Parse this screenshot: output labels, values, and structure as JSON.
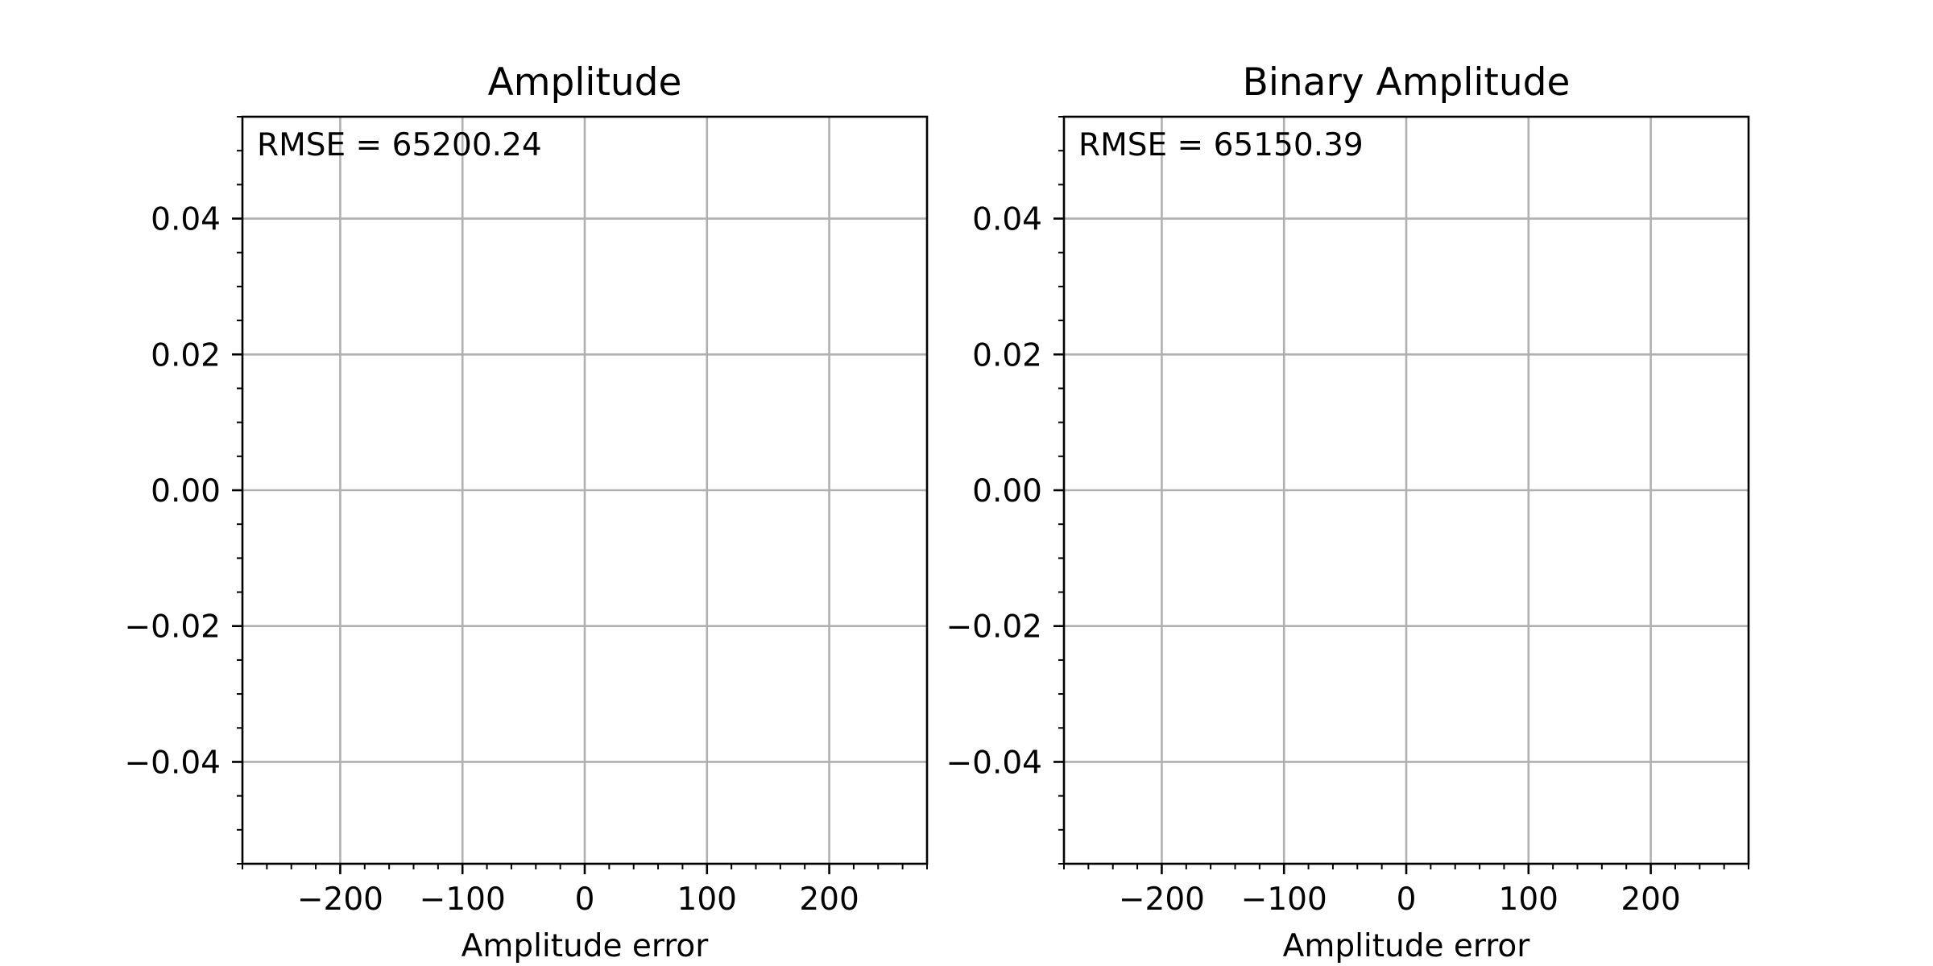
{
  "chart_data": [
    {
      "type": "scatter",
      "title": "Amplitude",
      "xlabel": "Amplitude error",
      "ylabel": "",
      "xlim": [
        -280,
        280
      ],
      "ylim": [
        -0.055,
        0.055
      ],
      "xticks": [
        -200,
        -100,
        0,
        100,
        200
      ],
      "xtick_labels": [
        "−200",
        "−100",
        "0",
        "100",
        "200"
      ],
      "yticks": [
        0.04,
        0.02,
        0.0,
        -0.02,
        -0.04
      ],
      "ytick_labels": [
        "0.04",
        "0.02",
        "0.00",
        "−0.02",
        "−0.04"
      ],
      "grid": true,
      "annotation": "RMSE = 65200.24",
      "series": []
    },
    {
      "type": "scatter",
      "title": "Binary Amplitude",
      "xlabel": "Amplitude error",
      "ylabel": "",
      "xlim": [
        -280,
        280
      ],
      "ylim": [
        -0.055,
        0.055
      ],
      "xticks": [
        -200,
        -100,
        0,
        100,
        200
      ],
      "xtick_labels": [
        "−200",
        "−100",
        "0",
        "100",
        "200"
      ],
      "yticks": [
        0.04,
        0.02,
        0.0,
        -0.02,
        -0.04
      ],
      "ytick_labels": [
        "0.04",
        "0.02",
        "0.00",
        "−0.02",
        "−0.04"
      ],
      "grid": true,
      "annotation": "RMSE = 65150.39",
      "series": []
    }
  ]
}
